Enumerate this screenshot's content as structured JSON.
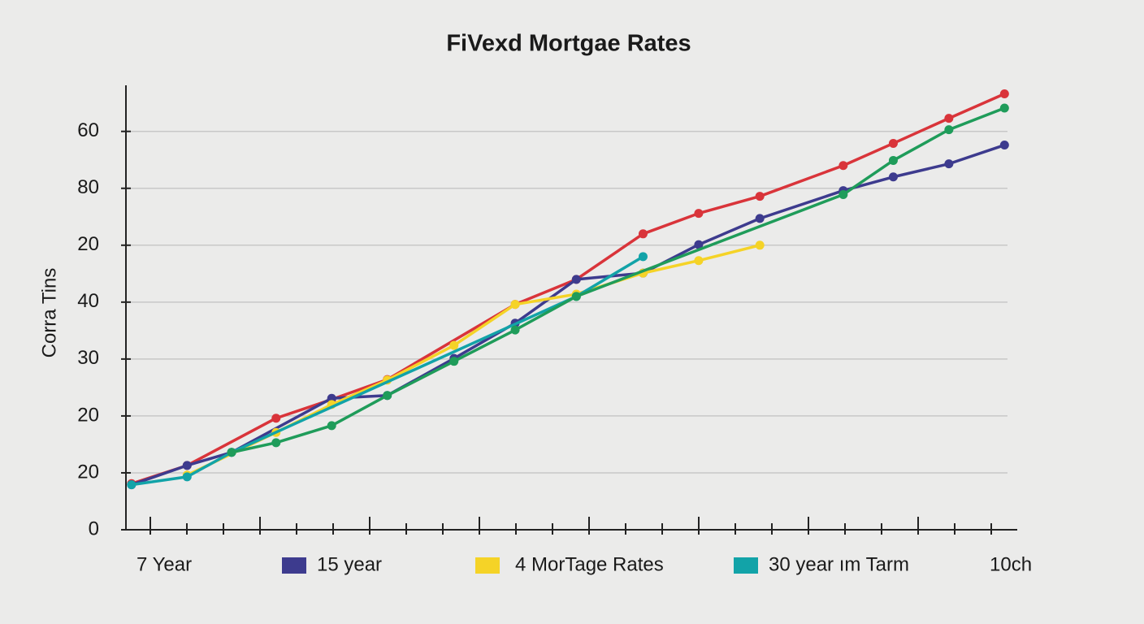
{
  "chart_data": {
    "type": "line",
    "title": "FiVexd Mortgae Rates",
    "y_label": "Corra Tins",
    "xlim": [
      0,
      16
    ],
    "ylim": [
      0,
      78.1
    ],
    "yticks": [
      0,
      {
        "value": 10,
        "label": "20"
      },
      20,
      30,
      40,
      {
        "value": 50,
        "label": "20"
      },
      {
        "value": 60,
        "label": "80"
      },
      {
        "value": 70,
        "label": "60"
      }
    ],
    "grid": true,
    "legend": "bottom",
    "series": [
      {
        "name": "7 Year",
        "color": "#d9343a",
        "swatch": false,
        "x": [
          0.1,
          1.1,
          2.7,
          3.7,
          4.7,
          7.0,
          8.1,
          9.3,
          10.3,
          11.4,
          12.9,
          13.8,
          14.8,
          15.8
        ],
        "values": [
          8.1,
          11.3,
          19.6,
          22.9,
          26.4,
          39.6,
          44.0,
          52.0,
          55.6,
          58.6,
          64.0,
          67.9,
          72.3,
          76.6
        ]
      },
      {
        "name": "15 year",
        "color": "#3d3b8e",
        "swatch": true,
        "x": [
          0.1,
          1.1,
          1.9,
          3.7,
          4.7,
          5.9,
          7.0,
          8.1,
          9.3,
          10.3,
          11.4,
          12.9,
          13.8,
          14.8,
          15.8
        ],
        "values": [
          7.9,
          11.3,
          13.6,
          23.1,
          23.6,
          30.1,
          36.3,
          44.0,
          45.1,
          50.1,
          54.7,
          59.6,
          62.0,
          64.3,
          67.6
        ]
      },
      {
        "name": "4 MorTage Rates",
        "color": "#f5d327",
        "swatch": true,
        "x": [
          1.1,
          2.7,
          3.7,
          4.7,
          5.9,
          7.0,
          8.1,
          9.3,
          10.3,
          11.4
        ],
        "values": [
          9.6,
          17.1,
          22.0,
          26.3,
          32.4,
          39.6,
          41.4,
          45.1,
          47.3,
          50.0
        ]
      },
      {
        "name": "30 year ım Tarm",
        "color": "#12a3a8",
        "swatch": true,
        "x": [
          0.1,
          1.1,
          1.9,
          8.1,
          9.3
        ],
        "values": [
          7.9,
          9.3,
          13.6,
          41.0,
          48.0
        ]
      },
      {
        "name": "10ch",
        "color": "#1f9c5a",
        "swatch": false,
        "x": [
          1.9,
          2.7,
          3.7,
          4.7,
          5.9,
          7.0,
          8.1,
          12.9,
          13.8,
          14.8,
          15.8
        ],
        "values": [
          13.6,
          15.3,
          18.3,
          23.6,
          29.6,
          35.1,
          41.0,
          58.9,
          64.9,
          70.3,
          74.1
        ]
      }
    ]
  }
}
